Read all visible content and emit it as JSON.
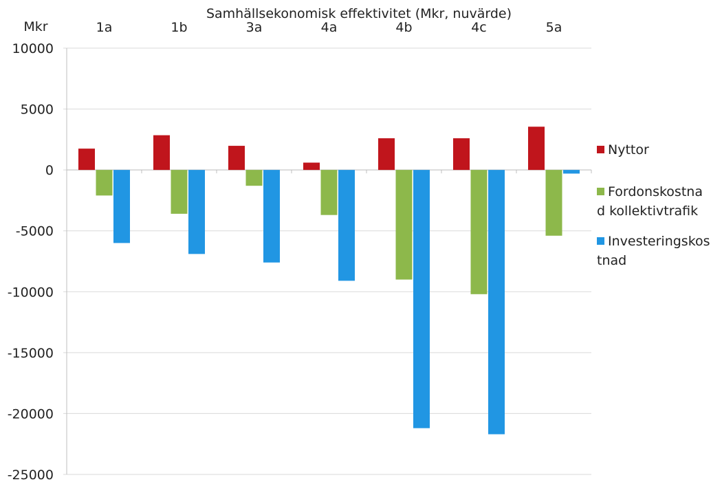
{
  "chart_data": {
    "type": "bar",
    "title": "Samhällsekonomisk effektivitet (Mkr, nuvärde)",
    "ylabel": "Mkr",
    "xlabel": "",
    "categories": [
      "1a",
      "1b",
      "3a",
      "4a",
      "4b",
      "4c",
      "5a"
    ],
    "ylim": [
      -25000,
      10000
    ],
    "yticks": [
      "10000",
      "5000",
      "0",
      "-5000",
      "-10000",
      "-15000",
      "-20000",
      "-25000"
    ],
    "grid": true,
    "legend_position": "right",
    "series": [
      {
        "name": "Nyttor",
        "legend_lines": [
          "Nyttor"
        ],
        "color": "#C0151C",
        "values": [
          1750,
          2850,
          1980,
          600,
          2600,
          2600,
          3550
        ]
      },
      {
        "name": "Fordonskostnad kollektivtrafik",
        "legend_lines": [
          "Fordonskostna",
          "d kollektivtrafik"
        ],
        "color": "#8DB84B",
        "values": [
          -2100,
          -3600,
          -1300,
          -3700,
          -9000,
          -10200,
          -5400
        ]
      },
      {
        "name": "Investeringskostnad",
        "legend_lines": [
          "Investeringskos",
          "tnad"
        ],
        "color": "#2196E3",
        "values": [
          -6000,
          -6900,
          -7600,
          -9100,
          -21200,
          -21700,
          -300
        ]
      }
    ]
  }
}
